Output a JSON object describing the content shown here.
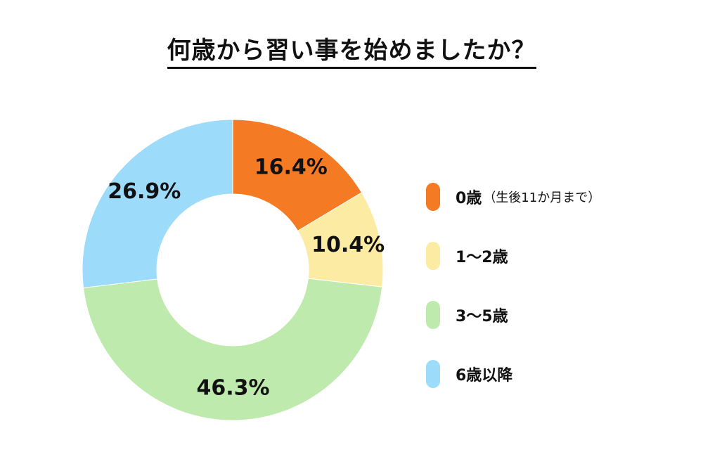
{
  "title": "何歳から習い事を始めましたか？",
  "chart_data": {
    "type": "pie",
    "title": "何歳から習い事を始めましたか？",
    "legend_position": "right",
    "slices": [
      {
        "label": "0歳",
        "note": "（生後11か月まで）",
        "value": 16.4,
        "display": "16.4%",
        "color": "#F47B24"
      },
      {
        "label": "1〜2歳",
        "note": "",
        "value": 10.4,
        "display": "10.4%",
        "color": "#FCEBA2"
      },
      {
        "label": "3〜5歳",
        "note": "",
        "value": 46.3,
        "display": "46.3%",
        "color": "#BFEAAE"
      },
      {
        "label": "6歳以降",
        "note": "",
        "value": 26.9,
        "display": "26.9%",
        "color": "#9DDBFB"
      }
    ]
  }
}
